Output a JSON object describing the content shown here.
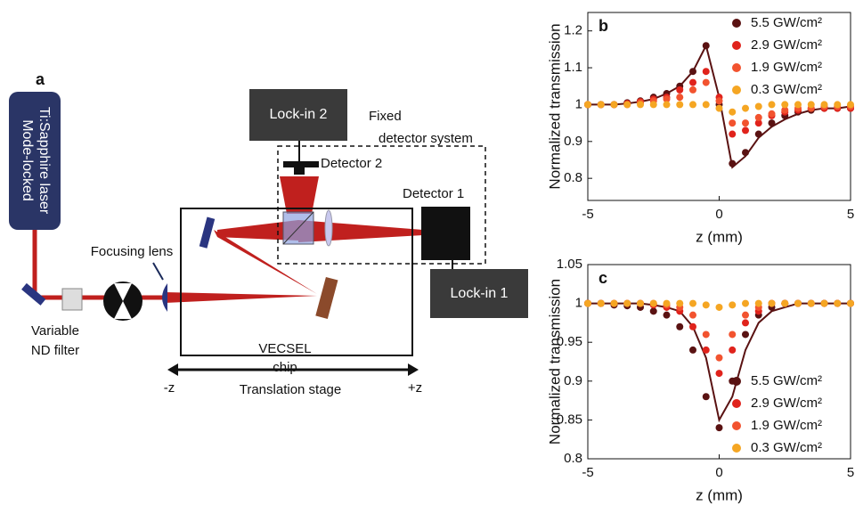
{
  "diagram": {
    "panel_label": "a",
    "laser": [
      "Mode-locked",
      "Ti:Sapphire laser"
    ],
    "focusing_lens": "Focusing lens",
    "nd_filter": [
      "Variable",
      "ND filter"
    ],
    "lockin2": "Lock-in 2",
    "fixed_system": [
      "Fixed",
      "detector system"
    ],
    "detector2": "Detector 2",
    "detector1": "Detector 1",
    "lockin1": "Lock-in 1",
    "chip": [
      "VECSEL",
      "chip"
    ],
    "minus_z": "-z",
    "plus_z": "+z",
    "stage": "Translation stage"
  },
  "chart_data": [
    {
      "type": "scatter",
      "panel_label": "b",
      "xlabel": "z (mm)",
      "ylabel": "Normalized transmission",
      "xlim": [
        -5,
        5
      ],
      "xticks": [
        -5,
        0,
        5
      ],
      "ylim": [
        0.74,
        1.25
      ],
      "yticks": [
        0.8,
        0.9,
        1,
        1.1,
        1.2
      ],
      "legend": "upper right",
      "x": [
        -5,
        -4.5,
        -4,
        -3.5,
        -3,
        -2.5,
        -2,
        -1.5,
        -1,
        -0.5,
        0,
        0.5,
        1,
        1.5,
        2,
        2.5,
        3,
        3.5,
        4,
        4.5,
        5
      ],
      "series": [
        {
          "name": "5.5 GW/cm²",
          "color": "#5a1212",
          "values": [
            1.0,
            1.0,
            1.0,
            1.005,
            1.01,
            1.02,
            1.03,
            1.05,
            1.09,
            1.16,
            1.0,
            0.84,
            0.87,
            0.92,
            0.95,
            0.97,
            0.98,
            0.985,
            0.99,
            0.99,
            0.99
          ],
          "fit": [
            1.0,
            1.0,
            1.0,
            1.003,
            1.008,
            1.015,
            1.03,
            1.05,
            1.09,
            1.16,
            1.02,
            0.83,
            0.86,
            0.91,
            0.94,
            0.96,
            0.975,
            0.985,
            0.99,
            0.99,
            0.995
          ]
        },
        {
          "name": "2.9 GW/cm²",
          "color": "#e0231c",
          "values": [
            1.0,
            1.0,
            1.0,
            1.003,
            1.008,
            1.015,
            1.02,
            1.04,
            1.06,
            1.09,
            1.02,
            0.92,
            0.93,
            0.95,
            0.97,
            0.98,
            0.985,
            0.99,
            0.99,
            0.99,
            0.99
          ]
        },
        {
          "name": "1.9 GW/cm²",
          "color": "#f2532f",
          "values": [
            1.0,
            1.0,
            1.0,
            1.0,
            1.005,
            1.01,
            1.015,
            1.02,
            1.04,
            1.06,
            1.01,
            0.95,
            0.95,
            0.965,
            0.975,
            0.985,
            0.99,
            0.99,
            0.995,
            0.995,
            0.995
          ]
        },
        {
          "name": "0.3 GW/cm²",
          "color": "#f5a623",
          "values": [
            1.0,
            1.0,
            1.0,
            1.0,
            1.0,
            1.0,
            1.0,
            1.0,
            1.0,
            1.0,
            0.99,
            0.98,
            0.99,
            0.995,
            1.0,
            1.0,
            1.0,
            1.0,
            1.0,
            1.0,
            1.0
          ]
        }
      ]
    },
    {
      "type": "scatter",
      "panel_label": "c",
      "xlabel": "z (mm)",
      "ylabel": "Normalized transmission",
      "xlim": [
        -5,
        5
      ],
      "xticks": [
        -5,
        0,
        5
      ],
      "ylim": [
        0.8,
        1.05
      ],
      "yticks": [
        0.8,
        0.85,
        0.9,
        0.95,
        1,
        1.05
      ],
      "legend": "lower right",
      "x": [
        -5,
        -4.5,
        -4,
        -3.5,
        -3,
        -2.5,
        -2,
        -1.5,
        -1,
        -0.5,
        0,
        0.5,
        1,
        1.5,
        2,
        2.5,
        3,
        3.5,
        4,
        4.5,
        5
      ],
      "series": [
        {
          "name": "5.5 GW/cm²",
          "color": "#5a1212",
          "values": [
            1.0,
            1.0,
            0.998,
            0.997,
            0.995,
            0.99,
            0.985,
            0.97,
            0.94,
            0.88,
            0.84,
            0.9,
            0.96,
            0.985,
            0.995,
            1.0,
            1.0,
            1.0,
            1.0,
            1.0,
            1.0
          ],
          "fit": [
            1.0,
            1.0,
            1.0,
            1.0,
            1.0,
            0.998,
            0.995,
            0.99,
            0.97,
            0.93,
            0.85,
            0.88,
            0.94,
            0.975,
            0.99,
            0.995,
            1.0,
            1.0,
            1.0,
            1.0,
            1.0
          ]
        },
        {
          "name": "2.9 GW/cm²",
          "color": "#e0231c",
          "values": [
            1.0,
            1.0,
            1.0,
            1.0,
            1.0,
            0.998,
            0.995,
            0.99,
            0.97,
            0.94,
            0.91,
            0.94,
            0.975,
            0.99,
            1.0,
            1.0,
            1.0,
            1.0,
            1.0,
            1.0,
            1.0
          ]
        },
        {
          "name": "1.9 GW/cm²",
          "color": "#f2532f",
          "values": [
            1.0,
            1.0,
            1.0,
            1.0,
            1.0,
            1.0,
            0.998,
            0.995,
            0.985,
            0.96,
            0.93,
            0.96,
            0.985,
            0.995,
            1.0,
            1.0,
            1.0,
            1.0,
            1.0,
            1.0,
            1.0
          ]
        },
        {
          "name": "0.3 GW/cm²",
          "color": "#f5a623",
          "values": [
            1.0,
            1.0,
            1.0,
            1.0,
            1.0,
            1.0,
            1.0,
            1.0,
            1.0,
            0.998,
            0.995,
            0.998,
            1.0,
            1.0,
            1.0,
            1.0,
            1.0,
            1.0,
            1.0,
            1.0,
            1.0
          ]
        }
      ]
    }
  ]
}
